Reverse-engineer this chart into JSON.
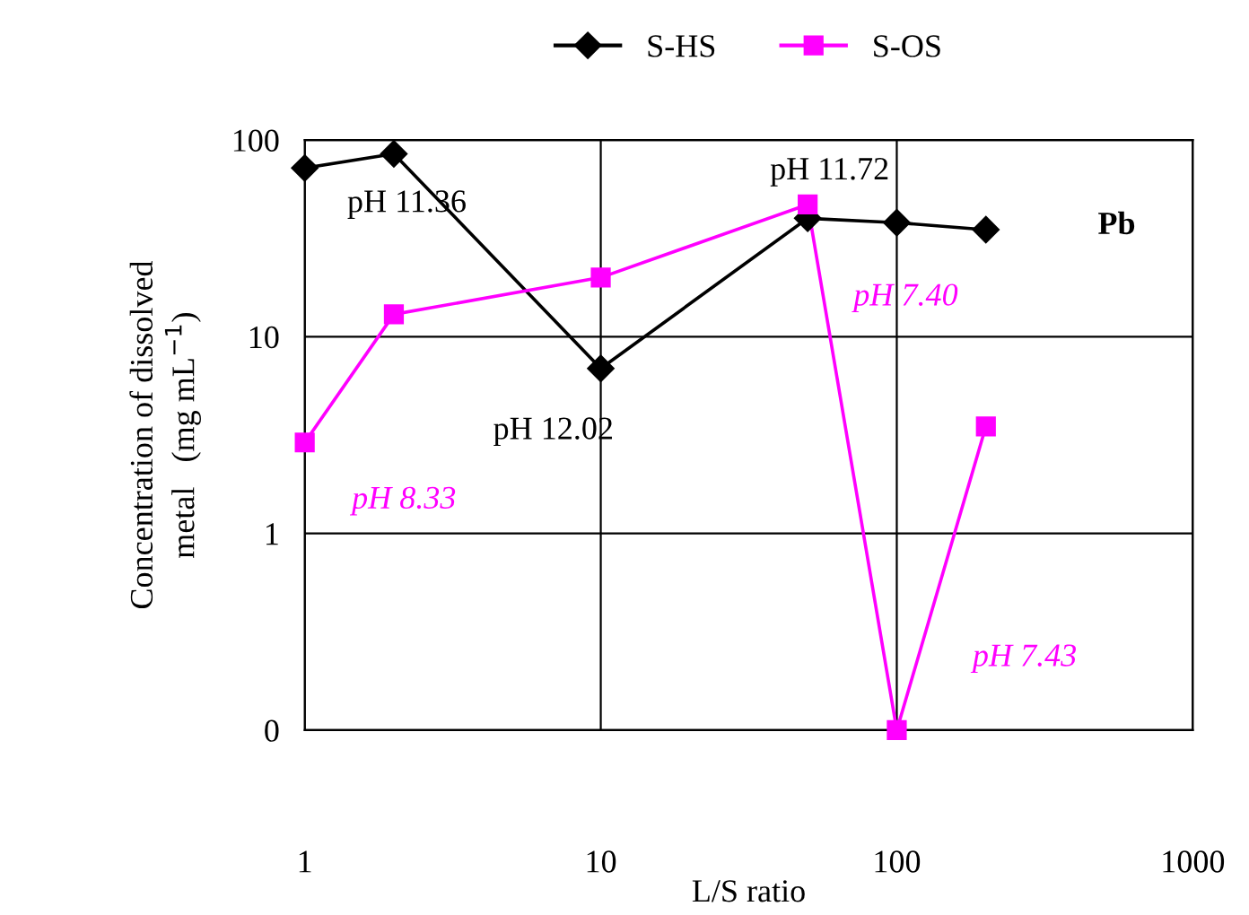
{
  "chart_data": {
    "type": "line",
    "xlabel": "L/S ratio",
    "ylabel": "Concentration of dissolved\nmetal   (mg mL$^{−1}$)",
    "log": "xy",
    "xlim": [
      1,
      1000
    ],
    "ylim": [
      0.1,
      100
    ],
    "xticks": [
      1,
      10,
      100,
      1000
    ],
    "yticks": [
      {
        "value": 0.1,
        "label": "0"
      },
      1,
      10,
      100
    ],
    "grid": true,
    "legend": "top",
    "line_style": "solid",
    "series": [
      {
        "name": "S-HS",
        "color": "#000000",
        "marker": "diamond",
        "x": [
          1,
          2,
          10,
          50,
          100,
          200
        ],
        "values": [
          72,
          85,
          6.9,
          40,
          38,
          35
        ]
      },
      {
        "name": "S-OS",
        "color": "#ff00ff",
        "marker": "square",
        "x": [
          1,
          2,
          10,
          50,
          100,
          200
        ],
        "values": [
          2.9,
          13,
          20,
          47,
          0.1,
          3.5
        ]
      }
    ],
    "annotations": [
      {
        "text": "pH 11.36",
        "x": 2,
        "y": 85
      },
      {
        "text": "pH 12.02",
        "x": 10,
        "y": 6.9
      },
      {
        "text": "pH 11.72",
        "x": 50,
        "y": 40
      },
      "pH 7.40",
      "pH 8.33",
      "pH 7.43",
      "Pb"
    ]
  }
}
